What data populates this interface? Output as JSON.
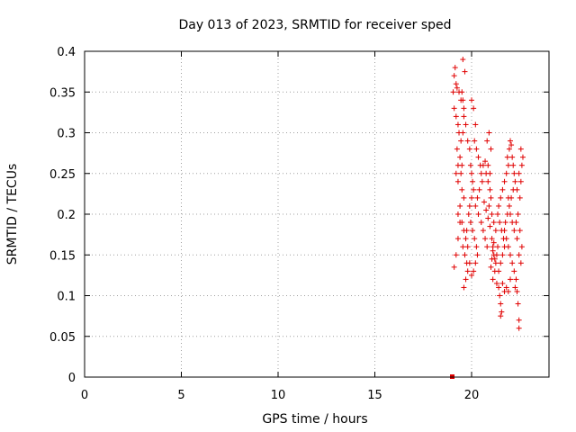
{
  "chart_data": {
    "type": "scatter",
    "title": "Day 013 of 2023, SRMTID for receiver sped",
    "xlabel": "GPS time / hours",
    "ylabel": "SRMTID / TECUs",
    "xlim": [
      0,
      24
    ],
    "ylim": [
      0,
      0.4
    ],
    "xticks": [
      0,
      5,
      10,
      15,
      20
    ],
    "yticks": [
      0,
      0.05,
      0.1,
      0.15,
      0.2,
      0.25,
      0.3,
      0.35,
      0.4
    ],
    "xtick_labels": [
      "0",
      "5",
      "10",
      "15",
      "20"
    ],
    "ytick_labels": [
      "0",
      "0.05",
      "0.1",
      "0.15",
      "0.2",
      "0.25",
      "0.3",
      "0.35",
      "0.4"
    ],
    "grid": true,
    "marker": "plus",
    "color": "#e00000",
    "zero_marker": {
      "x": 19.0,
      "y": 0
    },
    "series": [
      {
        "name": "SRMTID",
        "points": [
          [
            19.05,
            0.35
          ],
          [
            19.1,
            0.37
          ],
          [
            19.15,
            0.38
          ],
          [
            19.2,
            0.36
          ],
          [
            19.1,
            0.33
          ],
          [
            19.2,
            0.32
          ],
          [
            19.3,
            0.31
          ],
          [
            19.35,
            0.3
          ],
          [
            19.25,
            0.28
          ],
          [
            19.4,
            0.27
          ],
          [
            19.5,
            0.26
          ],
          [
            19.45,
            0.25
          ],
          [
            19.3,
            0.24
          ],
          [
            19.5,
            0.23
          ],
          [
            19.6,
            0.22
          ],
          [
            19.4,
            0.21
          ],
          [
            19.3,
            0.2
          ],
          [
            19.5,
            0.19
          ],
          [
            19.6,
            0.18
          ],
          [
            19.7,
            0.17
          ],
          [
            19.55,
            0.16
          ],
          [
            19.65,
            0.15
          ],
          [
            19.75,
            0.14
          ],
          [
            19.8,
            0.13
          ],
          [
            19.7,
            0.12
          ],
          [
            19.6,
            0.11
          ],
          [
            19.1,
            0.135
          ],
          [
            19.2,
            0.15
          ],
          [
            19.3,
            0.17
          ],
          [
            19.4,
            0.19
          ],
          [
            19.5,
            0.35
          ],
          [
            19.55,
            0.34
          ],
          [
            19.6,
            0.32
          ],
          [
            19.7,
            0.31
          ],
          [
            19.8,
            0.29
          ],
          [
            19.9,
            0.28
          ],
          [
            19.95,
            0.26
          ],
          [
            20.0,
            0.25
          ],
          [
            20.05,
            0.24
          ],
          [
            20.1,
            0.23
          ],
          [
            20.0,
            0.22
          ],
          [
            19.9,
            0.21
          ],
          [
            19.85,
            0.2
          ],
          [
            19.95,
            0.19
          ],
          [
            20.05,
            0.18
          ],
          [
            20.15,
            0.17
          ],
          [
            20.25,
            0.16
          ],
          [
            20.3,
            0.15
          ],
          [
            20.2,
            0.14
          ],
          [
            20.1,
            0.13
          ],
          [
            20.0,
            0.125
          ],
          [
            19.9,
            0.14
          ],
          [
            19.8,
            0.16
          ],
          [
            19.75,
            0.18
          ],
          [
            19.65,
            0.375
          ],
          [
            19.55,
            0.39
          ],
          [
            20.0,
            0.34
          ],
          [
            20.1,
            0.33
          ],
          [
            20.2,
            0.31
          ],
          [
            20.15,
            0.29
          ],
          [
            20.25,
            0.28
          ],
          [
            20.35,
            0.27
          ],
          [
            20.45,
            0.26
          ],
          [
            20.5,
            0.25
          ],
          [
            20.55,
            0.24
          ],
          [
            20.4,
            0.23
          ],
          [
            20.3,
            0.22
          ],
          [
            20.2,
            0.21
          ],
          [
            20.35,
            0.2
          ],
          [
            20.5,
            0.19
          ],
          [
            20.6,
            0.18
          ],
          [
            20.7,
            0.17
          ],
          [
            20.8,
            0.16
          ],
          [
            20.65,
            0.215
          ],
          [
            20.75,
            0.205
          ],
          [
            20.85,
            0.195
          ],
          [
            20.9,
            0.21
          ],
          [
            21.0,
            0.22
          ],
          [
            20.95,
            0.23
          ],
          [
            20.85,
            0.24
          ],
          [
            20.75,
            0.25
          ],
          [
            20.7,
            0.265
          ],
          [
            20.6,
            0.26
          ],
          [
            20.8,
            0.29
          ],
          [
            20.9,
            0.3
          ],
          [
            21.0,
            0.28
          ],
          [
            20.95,
            0.185
          ],
          [
            21.05,
            0.17
          ],
          [
            21.1,
            0.16
          ],
          [
            21.15,
            0.15
          ],
          [
            21.2,
            0.145
          ],
          [
            21.25,
            0.14
          ],
          [
            21.3,
            0.15
          ],
          [
            21.35,
            0.16
          ],
          [
            21.2,
            0.13
          ],
          [
            21.1,
            0.12
          ],
          [
            21.3,
            0.115
          ],
          [
            21.4,
            0.11
          ],
          [
            21.45,
            0.1
          ],
          [
            21.5,
            0.09
          ],
          [
            21.55,
            0.08
          ],
          [
            21.5,
            0.075
          ],
          [
            21.4,
            0.13
          ],
          [
            21.5,
            0.14
          ],
          [
            21.6,
            0.15
          ],
          [
            21.7,
            0.16
          ],
          [
            21.65,
            0.17
          ],
          [
            21.55,
            0.18
          ],
          [
            21.45,
            0.19
          ],
          [
            21.35,
            0.2
          ],
          [
            21.4,
            0.21
          ],
          [
            21.5,
            0.22
          ],
          [
            21.6,
            0.23
          ],
          [
            21.7,
            0.24
          ],
          [
            21.8,
            0.25
          ],
          [
            21.9,
            0.26
          ],
          [
            21.85,
            0.27
          ],
          [
            21.95,
            0.28
          ],
          [
            22.0,
            0.29
          ],
          [
            22.05,
            0.285
          ],
          [
            22.1,
            0.27
          ],
          [
            22.15,
            0.26
          ],
          [
            22.2,
            0.25
          ],
          [
            22.25,
            0.24
          ],
          [
            22.15,
            0.23
          ],
          [
            22.05,
            0.22
          ],
          [
            21.95,
            0.21
          ],
          [
            21.85,
            0.2
          ],
          [
            21.75,
            0.19
          ],
          [
            21.7,
            0.18
          ],
          [
            21.8,
            0.17
          ],
          [
            21.9,
            0.16
          ],
          [
            22.0,
            0.15
          ],
          [
            22.1,
            0.14
          ],
          [
            22.2,
            0.13
          ],
          [
            22.3,
            0.12
          ],
          [
            22.25,
            0.11
          ],
          [
            22.35,
            0.105
          ],
          [
            22.4,
            0.09
          ],
          [
            22.45,
            0.07
          ],
          [
            22.45,
            0.06
          ],
          [
            22.5,
            0.22
          ],
          [
            22.55,
            0.24
          ],
          [
            22.6,
            0.26
          ],
          [
            22.65,
            0.27
          ],
          [
            22.55,
            0.28
          ],
          [
            22.45,
            0.25
          ],
          [
            22.35,
            0.23
          ],
          [
            22.4,
            0.2
          ],
          [
            22.5,
            0.18
          ],
          [
            22.6,
            0.16
          ],
          [
            22.55,
            0.14
          ],
          [
            22.45,
            0.15
          ],
          [
            22.35,
            0.17
          ],
          [
            22.3,
            0.19
          ],
          [
            22.2,
            0.18
          ],
          [
            22.1,
            0.19
          ],
          [
            22.0,
            0.2
          ],
          [
            21.9,
            0.22
          ],
          [
            21.8,
            0.11
          ],
          [
            21.7,
            0.105
          ],
          [
            21.6,
            0.115
          ],
          [
            21.9,
            0.105
          ],
          [
            22.0,
            0.12
          ],
          [
            21.25,
            0.18
          ],
          [
            21.15,
            0.19
          ],
          [
            21.05,
            0.2
          ],
          [
            20.95,
            0.25
          ],
          [
            20.85,
            0.26
          ],
          [
            21.0,
            0.135
          ],
          [
            21.05,
            0.145
          ],
          [
            21.1,
            0.155
          ],
          [
            21.15,
            0.165
          ],
          [
            19.2,
            0.25
          ],
          [
            19.3,
            0.26
          ],
          [
            19.45,
            0.29
          ],
          [
            19.55,
            0.3
          ],
          [
            19.6,
            0.33
          ],
          [
            19.45,
            0.34
          ],
          [
            19.35,
            0.35
          ],
          [
            19.25,
            0.355
          ]
        ]
      }
    ]
  }
}
